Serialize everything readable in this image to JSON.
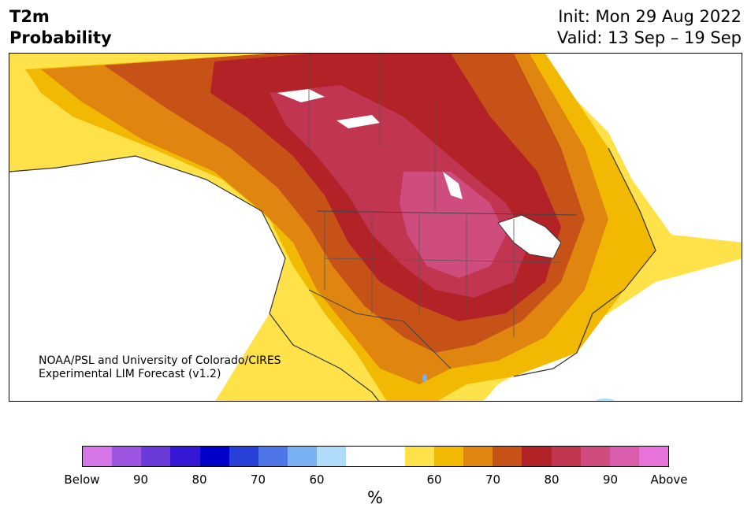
{
  "header": {
    "variable": "T2m",
    "product": "Probability",
    "init": "Init: Mon 29 Aug 2022",
    "valid": "Valid: 13 Sep – 19 Sep"
  },
  "credit": {
    "line1": "NOAA/PSL and University of Colorado/CIRES",
    "line2": "Experimental LIM Forecast (v1.2)"
  },
  "legend": {
    "units": "%",
    "colors": [
      "#d676e9",
      "#9d55e2",
      "#6b3bd9",
      "#3518d3",
      "#0000c8",
      "#2740d8",
      "#4f75e6",
      "#79b1f3",
      "#aedcf9",
      "#ffffff",
      "#ffffff",
      "#ffe14a",
      "#f2b902",
      "#e0850f",
      "#c75218",
      "#b22226",
      "#c23550",
      "#cf4d7e",
      "#da5cad",
      "#e772da"
    ],
    "ticks": [
      {
        "label": "Below",
        "index": 0
      },
      {
        "label": "90",
        "index": 2
      },
      {
        "label": "80",
        "index": 4
      },
      {
        "label": "70",
        "index": 6
      },
      {
        "label": "60",
        "index": 8
      },
      {
        "label": "60",
        "index": 12
      },
      {
        "label": "70",
        "index": 14
      },
      {
        "label": "80",
        "index": 16
      },
      {
        "label": "90",
        "index": 18
      },
      {
        "label": "Above",
        "index": 20
      }
    ]
  }
}
